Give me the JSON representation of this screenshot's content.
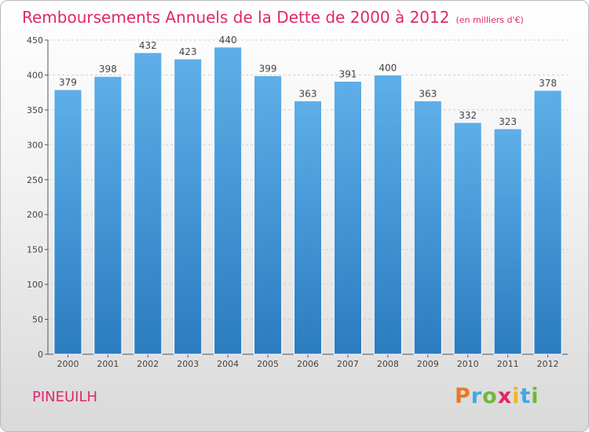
{
  "chart_data": {
    "type": "bar",
    "title": "Remboursements Annuels de la Dette de 2000 à 2012",
    "unit": "(en milliers d'€)",
    "categories": [
      "2000",
      "2001",
      "2002",
      "2003",
      "2004",
      "2005",
      "2006",
      "2007",
      "2008",
      "2009",
      "2010",
      "2011",
      "2012"
    ],
    "values": [
      379,
      398,
      432,
      423,
      440,
      399,
      363,
      391,
      400,
      363,
      332,
      323,
      378
    ],
    "ylim": [
      0,
      450
    ],
    "yticks": [
      0,
      50,
      100,
      150,
      200,
      250,
      300,
      350,
      400,
      450
    ],
    "grid": true,
    "bar_color_top": "#5eaee9",
    "bar_color_bottom": "#2b7cc0"
  },
  "footer": {
    "town": "PINEUILH",
    "logo": "Proxiti"
  },
  "colors": {
    "title": "#e0266e",
    "logo_letters": [
      "#e8772b",
      "#3fa9e0",
      "#6fb83a",
      "#e0266e",
      "#f0b51f",
      "#3fa9e0",
      "#6fb83a"
    ]
  }
}
